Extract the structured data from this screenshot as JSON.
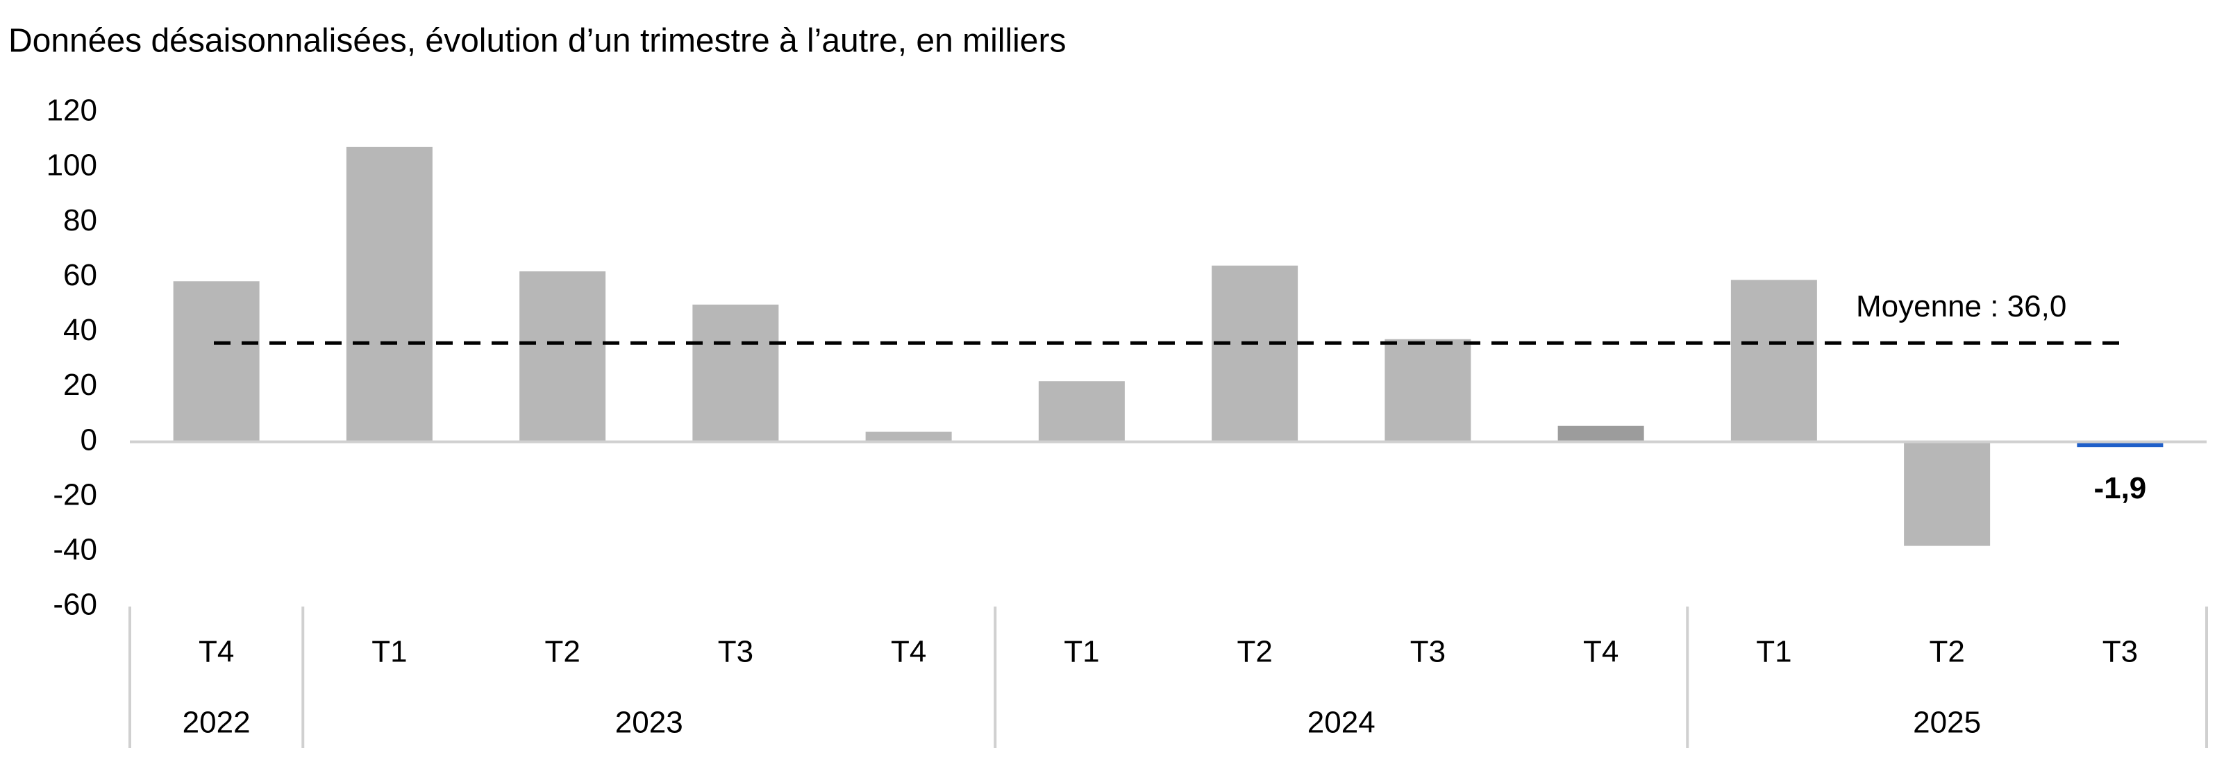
{
  "chart_data": {
    "type": "bar",
    "title": "Données désaisonnalisées, évolution d’un trimestre à l’autre, en milliers",
    "categories": [
      "T4",
      "T1",
      "T2",
      "T3",
      "T4",
      "T1",
      "T2",
      "T3",
      "T4",
      "T1",
      "T2",
      "T3"
    ],
    "years": [
      "2022",
      "2023",
      null,
      null,
      null,
      "2024",
      null,
      null,
      null,
      "2025",
      null,
      null
    ],
    "values": [
      58.5,
      107.4,
      62.1,
      50.0,
      3.7,
      22.1,
      64.2,
      37.4,
      5.8,
      59.0,
      -37.9,
      -1.9
    ],
    "value_labels": [
      null,
      null,
      null,
      null,
      null,
      null,
      null,
      null,
      null,
      null,
      null,
      "-1,9"
    ],
    "colors": [
      "#b7b7b7",
      "#b7b7b7",
      "#b7b7b7",
      "#b7b7b7",
      "#b7b7b7",
      "#b7b7b7",
      "#b7b7b7",
      "#b7b7b7",
      "#9c9c9c",
      "#b7b7b7",
      "#b7b7b7",
      "#1f5fc9"
    ],
    "mean": 36.0,
    "mean_label": "Moyenne : 36,0",
    "ylim": [
      -60,
      120
    ],
    "yticks": [
      -60,
      -40,
      -20,
      0,
      20,
      40,
      60,
      80,
      100,
      120
    ]
  }
}
